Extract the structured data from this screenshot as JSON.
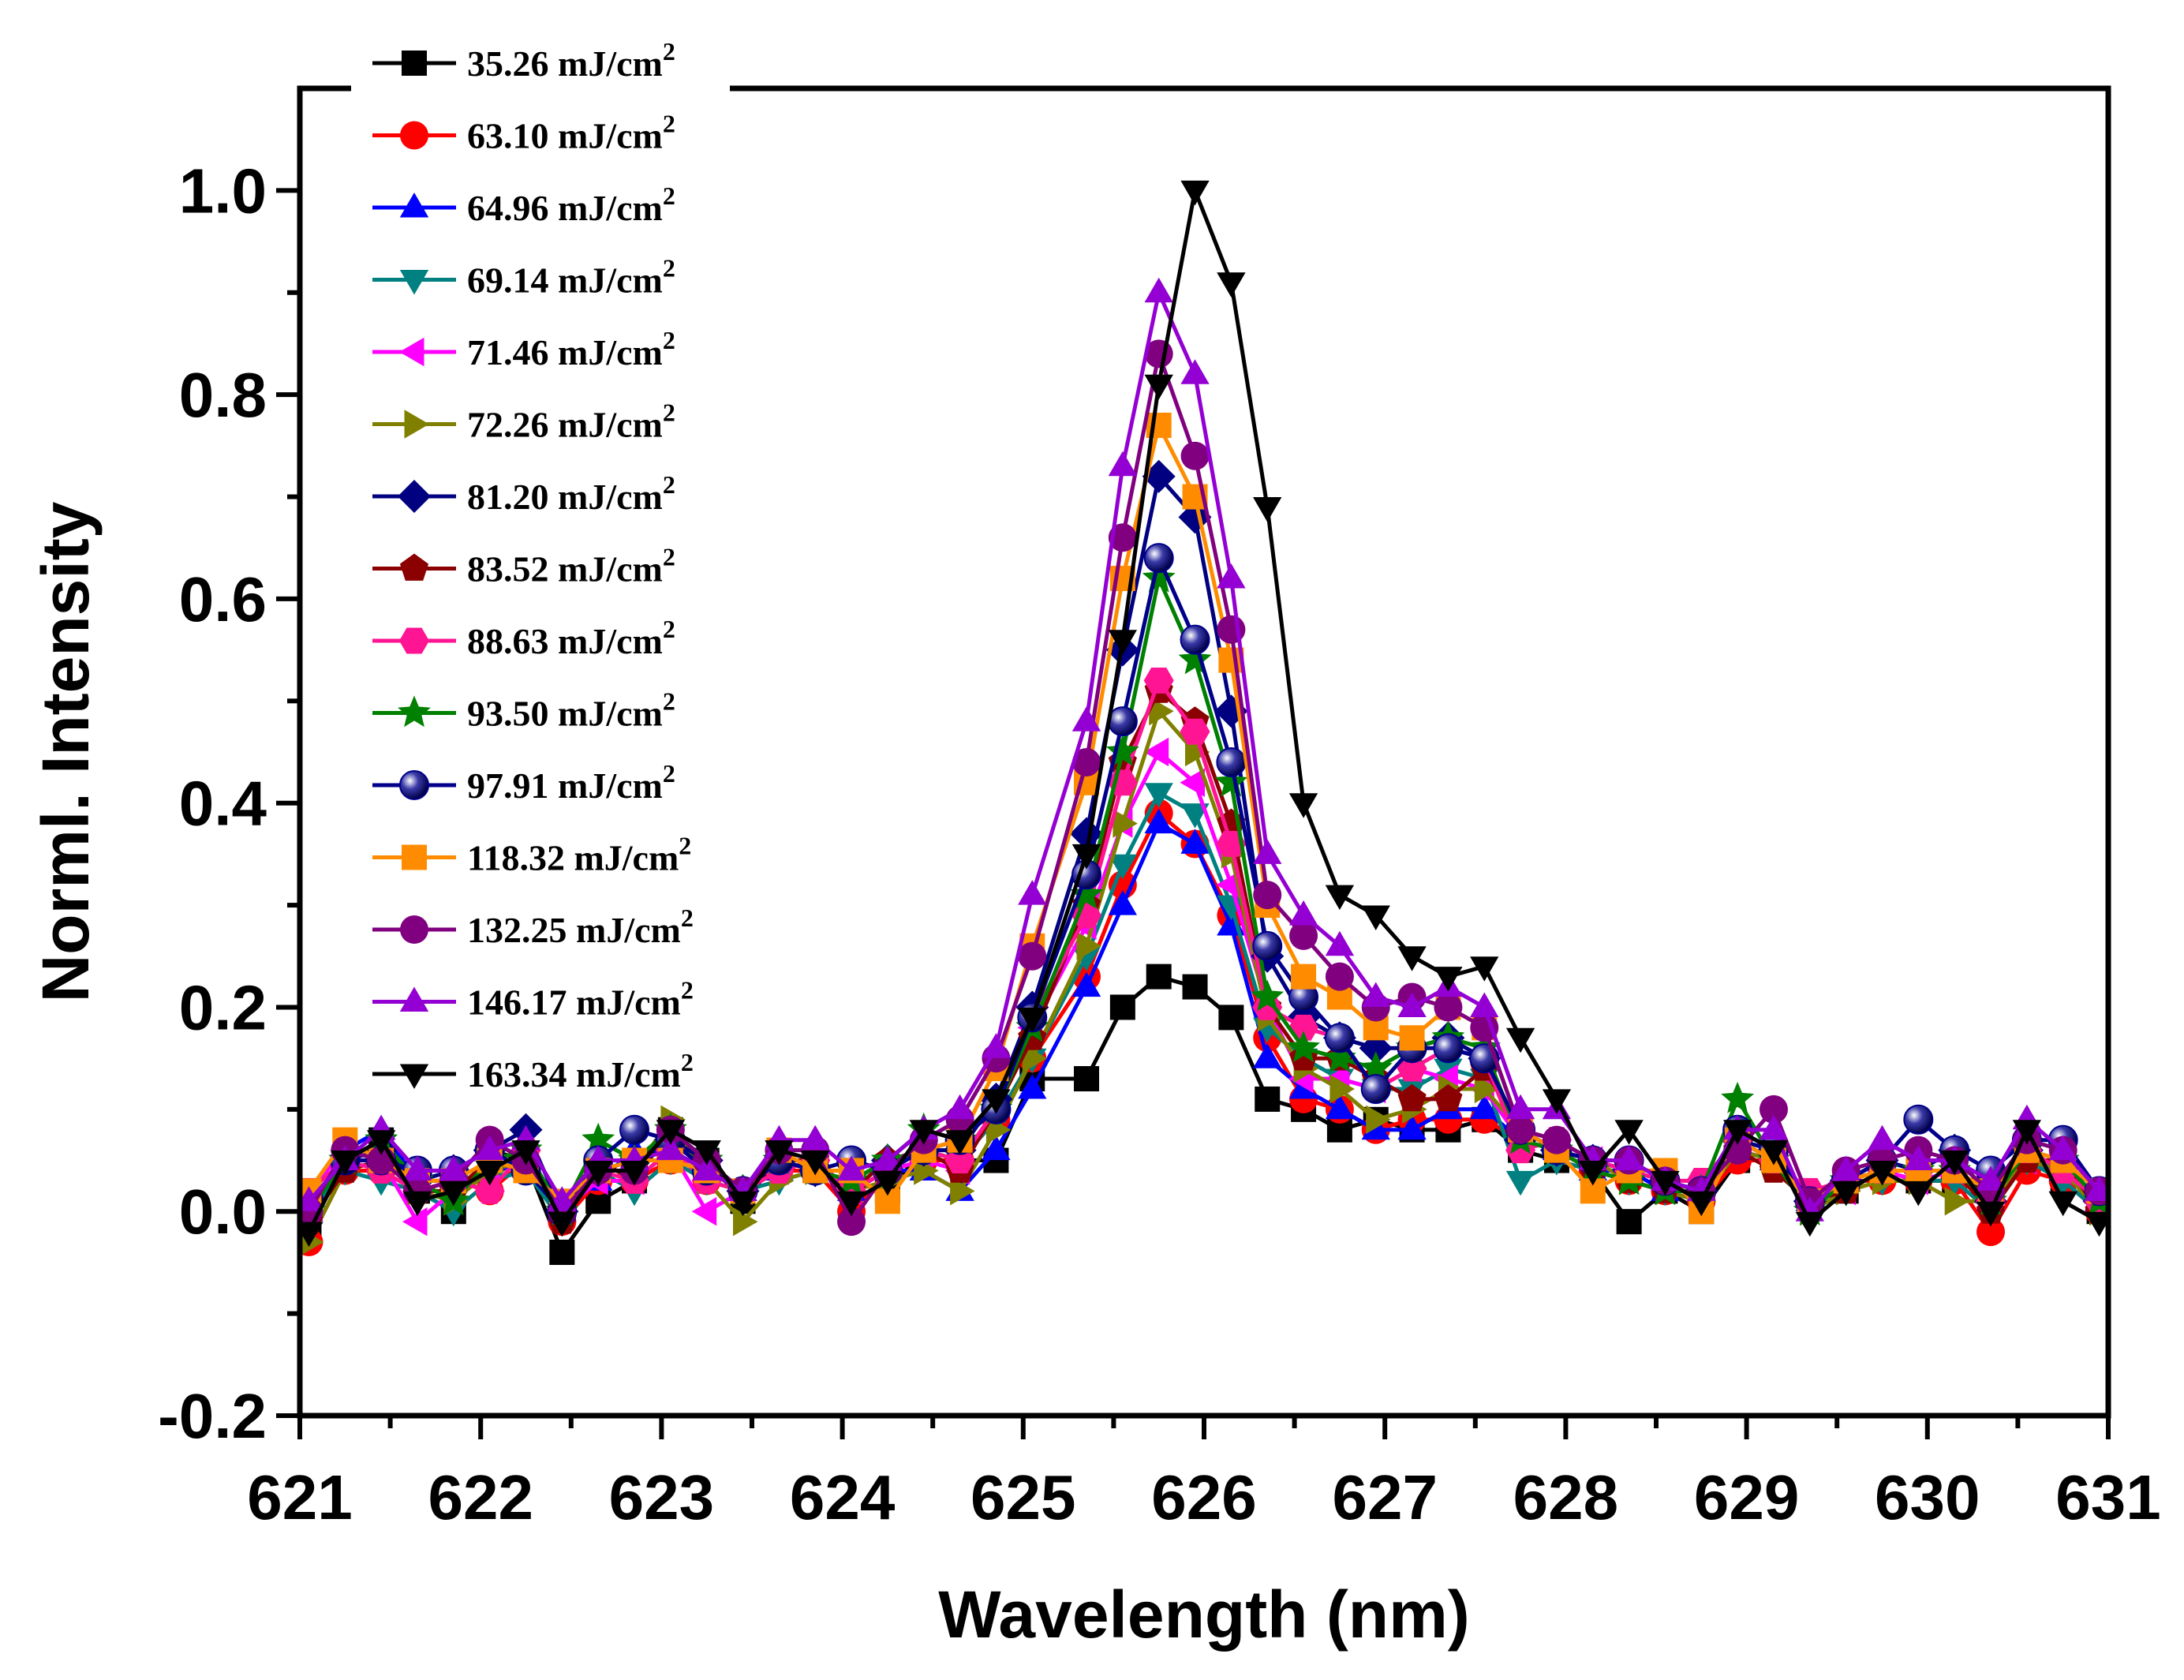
{
  "chart_data": {
    "type": "line",
    "title": "",
    "xlabel": "Wavelength (nm)",
    "ylabel": "Norml. Intensity",
    "xlim": [
      621,
      631
    ],
    "ylim": [
      -0.2,
      1.1
    ],
    "xticks": [
      "621",
      "622",
      "623",
      "624",
      "625",
      "626",
      "627",
      "628",
      "629",
      "630",
      "631"
    ],
    "yticks": [
      "-0.2",
      "0.0",
      "0.2",
      "0.4",
      "0.6",
      "0.8",
      "1.0"
    ],
    "legend_position": "top-left",
    "legend_unit": "mJ/cm",
    "legend_unit_sup": "2",
    "x": [
      621.05,
      621.25,
      621.45,
      621.65,
      621.85,
      622.05,
      622.25,
      622.45,
      622.65,
      622.85,
      623.05,
      623.25,
      623.45,
      623.65,
      623.85,
      624.05,
      624.25,
      624.45,
      624.65,
      624.85,
      625.05,
      625.35,
      625.55,
      625.75,
      625.95,
      626.15,
      626.35,
      626.55,
      626.75,
      626.95,
      627.15,
      627.35,
      627.55,
      627.75,
      627.95,
      628.15,
      628.35,
      628.55,
      628.75,
      628.95,
      629.15,
      629.35,
      629.55,
      629.75,
      629.95,
      630.15,
      630.35,
      630.55,
      630.75,
      630.95
    ],
    "series": [
      {
        "name": "35.26 mJ/cm2",
        "label": "35.26",
        "color": "#000000",
        "marker": "square",
        "values": [
          -0.02,
          0.05,
          0.07,
          0.02,
          0.0,
          0.06,
          0.05,
          -0.04,
          0.01,
          0.03,
          0.08,
          0.05,
          0.01,
          0.05,
          0.04,
          0.03,
          0.02,
          0.06,
          0.05,
          0.05,
          0.13,
          0.13,
          0.2,
          0.23,
          0.22,
          0.19,
          0.11,
          0.1,
          0.08,
          0.09,
          0.08,
          0.08,
          0.09,
          0.06,
          0.05,
          0.04,
          -0.01,
          0.02,
          0.0,
          0.05,
          0.05,
          0.01,
          0.02,
          0.04,
          0.03,
          0.03,
          0.02,
          0.05,
          0.03,
          0.0
        ]
      },
      {
        "name": "63.10 mJ/cm2",
        "label": "63.10",
        "color": "#ff0000",
        "marker": "circle",
        "values": [
          -0.03,
          0.04,
          0.04,
          0.02,
          0.03,
          0.02,
          0.05,
          -0.01,
          0.03,
          0.03,
          0.05,
          0.03,
          0.02,
          0.04,
          0.04,
          0.0,
          0.04,
          0.05,
          0.05,
          0.09,
          0.15,
          0.23,
          0.32,
          0.39,
          0.36,
          0.29,
          0.17,
          0.11,
          0.1,
          0.08,
          0.09,
          0.09,
          0.09,
          0.07,
          0.06,
          0.04,
          0.03,
          0.02,
          0.01,
          0.05,
          0.05,
          0.01,
          0.03,
          0.03,
          0.03,
          0.03,
          -0.02,
          0.04,
          0.03,
          0.0
        ]
      },
      {
        "name": "64.96 mJ/cm2",
        "label": "64.96",
        "color": "#0000ff",
        "marker": "triangle-up",
        "values": [
          0.0,
          0.06,
          0.08,
          0.03,
          0.03,
          0.03,
          0.06,
          0.0,
          0.03,
          0.06,
          0.06,
          0.04,
          0.02,
          0.04,
          0.05,
          0.02,
          0.04,
          0.04,
          0.02,
          0.06,
          0.12,
          0.22,
          0.3,
          0.38,
          0.36,
          0.28,
          0.15,
          0.12,
          0.1,
          0.08,
          0.08,
          0.1,
          0.1,
          0.07,
          0.06,
          0.04,
          0.04,
          0.02,
          0.02,
          0.06,
          0.05,
          0.01,
          0.03,
          0.05,
          0.04,
          0.04,
          0.01,
          0.06,
          0.04,
          0.01
        ]
      },
      {
        "name": "69.14 mJ/cm2",
        "label": "69.14",
        "color": "#008080",
        "marker": "triangle-down",
        "values": [
          0.0,
          0.04,
          0.03,
          0.02,
          0.0,
          0.03,
          0.04,
          -0.01,
          0.04,
          0.02,
          0.05,
          0.03,
          0.02,
          0.03,
          0.04,
          0.02,
          0.04,
          0.06,
          0.05,
          0.09,
          0.15,
          0.25,
          0.34,
          0.41,
          0.39,
          0.3,
          0.18,
          0.15,
          0.13,
          0.12,
          0.12,
          0.14,
          0.13,
          0.03,
          0.05,
          0.04,
          0.03,
          0.02,
          0.01,
          0.06,
          0.05,
          0.0,
          0.02,
          0.03,
          0.03,
          0.03,
          0.0,
          0.05,
          0.03,
          0.0
        ]
      },
      {
        "name": "71.46 mJ/cm2",
        "label": "71.46",
        "color": "#ff00ff",
        "marker": "triangle-left",
        "values": [
          0.02,
          0.06,
          0.05,
          -0.01,
          0.02,
          0.04,
          0.05,
          0.0,
          0.03,
          0.03,
          0.06,
          0.0,
          0.02,
          0.04,
          0.05,
          0.02,
          0.04,
          0.05,
          0.04,
          0.1,
          0.18,
          0.28,
          0.38,
          0.45,
          0.42,
          0.32,
          0.2,
          0.13,
          0.13,
          0.12,
          0.14,
          0.13,
          0.12,
          0.07,
          0.06,
          0.05,
          0.04,
          0.03,
          0.02,
          0.07,
          0.05,
          0.01,
          0.02,
          0.04,
          0.03,
          0.04,
          0.01,
          0.05,
          0.04,
          0.01
        ]
      },
      {
        "name": "72.26 mJ/cm2",
        "label": "72.26",
        "color": "#808000",
        "marker": "triangle-right",
        "values": [
          -0.03,
          0.04,
          0.05,
          0.02,
          0.01,
          0.04,
          0.05,
          0.0,
          0.04,
          0.04,
          0.09,
          0.03,
          -0.01,
          0.03,
          0.04,
          0.02,
          0.03,
          0.04,
          0.02,
          0.08,
          0.15,
          0.26,
          0.38,
          0.49,
          0.45,
          0.35,
          0.19,
          0.14,
          0.12,
          0.09,
          0.1,
          0.12,
          0.12,
          0.08,
          0.06,
          0.05,
          0.03,
          0.02,
          0.01,
          0.06,
          0.05,
          0.0,
          0.02,
          0.03,
          0.03,
          0.01,
          0.01,
          0.05,
          0.04,
          0.0
        ]
      },
      {
        "name": "81.20 mJ/cm2",
        "label": "81.20",
        "color": "#000080",
        "marker": "diamond",
        "values": [
          0.01,
          0.05,
          0.06,
          0.03,
          0.04,
          0.06,
          0.08,
          0.0,
          0.04,
          0.05,
          0.07,
          0.05,
          0.02,
          0.05,
          0.04,
          0.03,
          0.05,
          0.06,
          0.06,
          0.11,
          0.2,
          0.37,
          0.55,
          0.72,
          0.68,
          0.49,
          0.25,
          0.19,
          0.17,
          0.16,
          0.16,
          0.17,
          0.15,
          0.07,
          0.06,
          0.05,
          0.04,
          0.03,
          0.02,
          0.07,
          0.06,
          0.01,
          0.03,
          0.05,
          0.04,
          0.06,
          0.01,
          0.06,
          0.05,
          0.01
        ]
      },
      {
        "name": "83.52 mJ/cm2",
        "label": "83.52",
        "color": "#8b0000",
        "marker": "pentagon",
        "values": [
          -0.01,
          0.04,
          0.05,
          0.02,
          0.02,
          0.05,
          0.06,
          -0.01,
          0.05,
          0.03,
          0.06,
          0.04,
          0.02,
          0.05,
          0.05,
          0.02,
          0.05,
          0.06,
          0.04,
          0.1,
          0.17,
          0.3,
          0.44,
          0.51,
          0.48,
          0.38,
          0.2,
          0.15,
          0.15,
          0.13,
          0.11,
          0.11,
          0.14,
          0.08,
          0.06,
          0.04,
          0.03,
          0.02,
          0.02,
          0.06,
          0.04,
          0.01,
          0.02,
          0.04,
          0.04,
          0.04,
          0.0,
          0.05,
          0.05,
          0.0
        ]
      },
      {
        "name": "88.63 mJ/cm2",
        "label": "88.63",
        "color": "#ff1493",
        "marker": "hexagon",
        "values": [
          0.02,
          0.05,
          0.04,
          0.02,
          0.03,
          0.02,
          0.06,
          0.0,
          0.04,
          0.03,
          0.06,
          0.03,
          0.02,
          0.04,
          0.05,
          0.02,
          0.04,
          0.06,
          0.05,
          0.1,
          0.19,
          0.29,
          0.42,
          0.52,
          0.47,
          0.36,
          0.2,
          0.18,
          0.17,
          0.12,
          0.14,
          0.16,
          0.15,
          0.06,
          0.07,
          0.05,
          0.04,
          0.03,
          0.03,
          0.07,
          0.05,
          0.02,
          0.03,
          0.04,
          0.04,
          0.04,
          0.01,
          0.06,
          0.04,
          0.01
        ]
      },
      {
        "name": "93.50 mJ/cm2",
        "label": "93.50",
        "color": "#008000",
        "marker": "star",
        "values": [
          0.0,
          0.05,
          0.07,
          0.03,
          0.01,
          0.05,
          0.06,
          0.0,
          0.07,
          0.05,
          0.08,
          0.05,
          0.02,
          0.05,
          0.04,
          0.03,
          0.05,
          0.08,
          0.07,
          0.1,
          0.18,
          0.31,
          0.45,
          0.62,
          0.54,
          0.42,
          0.21,
          0.16,
          0.15,
          0.14,
          0.16,
          0.17,
          0.16,
          0.07,
          0.06,
          0.04,
          0.03,
          0.02,
          0.02,
          0.11,
          0.05,
          0.0,
          0.03,
          0.04,
          0.04,
          0.04,
          0.01,
          0.06,
          0.05,
          0.01
        ]
      },
      {
        "name": "97.91 mJ/cm2",
        "label": "97.91",
        "color": "#00008b",
        "marker": "sphere",
        "values": [
          0.01,
          0.05,
          0.05,
          0.04,
          0.04,
          0.06,
          0.04,
          0.0,
          0.05,
          0.08,
          0.07,
          0.04,
          0.02,
          0.05,
          0.04,
          0.05,
          0.04,
          0.06,
          0.07,
          0.1,
          0.19,
          0.33,
          0.48,
          0.64,
          0.56,
          0.44,
          0.26,
          0.21,
          0.17,
          0.12,
          0.16,
          0.16,
          0.15,
          0.08,
          0.06,
          0.05,
          0.05,
          0.03,
          0.02,
          0.08,
          0.06,
          0.01,
          0.03,
          0.05,
          0.09,
          0.06,
          0.04,
          0.07,
          0.07,
          0.02
        ]
      },
      {
        "name": "118.32 mJ/cm2",
        "label": "118.32",
        "color": "#ff8c00",
        "marker": "square",
        "values": [
          0.02,
          0.07,
          0.05,
          0.03,
          0.03,
          0.05,
          0.04,
          0.01,
          0.04,
          0.05,
          0.05,
          0.04,
          0.02,
          0.06,
          0.04,
          0.04,
          0.01,
          0.06,
          0.07,
          0.14,
          0.26,
          0.42,
          0.62,
          0.77,
          0.7,
          0.54,
          0.3,
          0.23,
          0.21,
          0.18,
          0.17,
          0.2,
          0.18,
          0.08,
          0.06,
          0.02,
          0.04,
          0.04,
          0.0,
          0.07,
          0.05,
          0.01,
          0.03,
          0.04,
          0.04,
          0.04,
          0.02,
          0.06,
          0.05,
          0.02
        ]
      },
      {
        "name": "132.25 mJ/cm2",
        "label": "132.25",
        "color": "#800080",
        "marker": "circle",
        "values": [
          0.0,
          0.06,
          0.05,
          0.02,
          0.03,
          0.07,
          0.05,
          0.0,
          0.04,
          0.04,
          0.08,
          0.05,
          0.02,
          0.06,
          0.06,
          -0.01,
          0.04,
          0.07,
          0.09,
          0.15,
          0.25,
          0.44,
          0.66,
          0.84,
          0.74,
          0.57,
          0.31,
          0.27,
          0.23,
          0.2,
          0.21,
          0.2,
          0.18,
          0.08,
          0.07,
          0.05,
          0.05,
          0.03,
          0.02,
          0.06,
          0.1,
          0.01,
          0.04,
          0.05,
          0.06,
          0.05,
          0.02,
          0.07,
          0.06,
          0.02
        ]
      },
      {
        "name": "146.17 mJ/cm2",
        "label": "146.17",
        "color": "#9400d3",
        "marker": "triangle-up",
        "values": [
          0.01,
          0.05,
          0.08,
          0.04,
          0.04,
          0.06,
          0.07,
          0.01,
          0.05,
          0.05,
          0.06,
          0.04,
          0.02,
          0.07,
          0.07,
          0.04,
          0.05,
          0.08,
          0.1,
          0.16,
          0.31,
          0.48,
          0.73,
          0.9,
          0.82,
          0.62,
          0.35,
          0.29,
          0.26,
          0.21,
          0.2,
          0.22,
          0.2,
          0.1,
          0.1,
          0.05,
          0.05,
          0.03,
          0.02,
          0.08,
          0.08,
          0.0,
          0.04,
          0.07,
          0.05,
          0.05,
          0.03,
          0.09,
          0.06,
          0.02
        ]
      },
      {
        "name": "163.34 mJ/cm2",
        "label": "163.34",
        "color": "#000000",
        "marker": "triangle-down",
        "values": [
          -0.02,
          0.05,
          0.07,
          0.01,
          0.02,
          0.04,
          0.06,
          -0.01,
          0.04,
          0.04,
          0.08,
          0.06,
          0.01,
          0.06,
          0.05,
          0.01,
          0.03,
          0.08,
          0.07,
          0.11,
          0.19,
          0.35,
          0.56,
          0.81,
          1.0,
          0.91,
          0.69,
          0.4,
          0.31,
          0.29,
          0.25,
          0.23,
          0.24,
          0.17,
          0.11,
          0.04,
          0.08,
          0.03,
          0.01,
          0.08,
          0.06,
          -0.01,
          0.02,
          0.04,
          0.02,
          0.05,
          0.0,
          0.08,
          0.01,
          -0.01
        ]
      }
    ]
  }
}
